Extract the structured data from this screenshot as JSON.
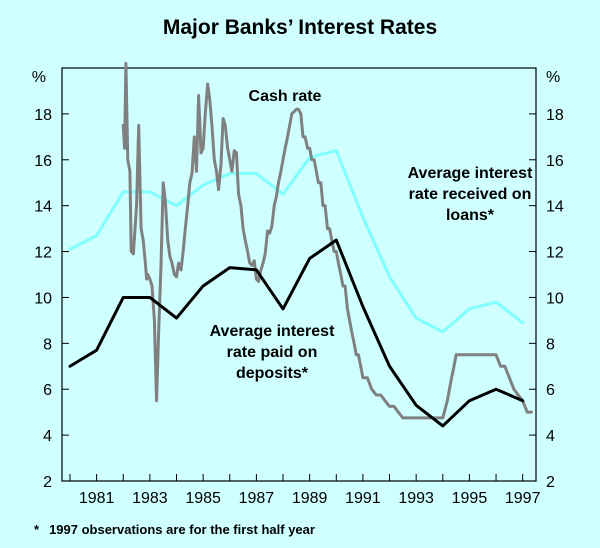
{
  "chart_data": {
    "type": "line",
    "title": "Major Banks’ Interest Rates",
    "ylabel_left": "%",
    "ylabel_right": "%",
    "ylim": [
      2,
      20
    ],
    "xlim": [
      1979.7,
      1997.5
    ],
    "y_ticks": [
      2,
      4,
      6,
      8,
      10,
      12,
      14,
      16,
      18
    ],
    "x_ticks": [
      1981,
      1983,
      1985,
      1987,
      1989,
      1991,
      1993,
      1995,
      1997
    ],
    "x_tick_labels": [
      "1981",
      "1983",
      "1985",
      "1987",
      "1989",
      "1991",
      "1993",
      "1995",
      "1997"
    ],
    "grid": false,
    "footnote": {
      "marker": "*",
      "text": "1997 observations are for the first half year"
    },
    "series": [
      {
        "name": "Average interest rate received on loans*",
        "label_lines": [
          "Average interest",
          "rate received on",
          "loans*"
        ],
        "color": "#80ffff",
        "stroke": 3,
        "x": [
          1980,
          1981,
          1982,
          1983,
          1984,
          1985,
          1986,
          1987,
          1988,
          1989,
          1990,
          1991,
          1992,
          1993,
          1994,
          1995,
          1996,
          1997
        ],
        "values": [
          12.1,
          12.7,
          14.6,
          14.6,
          14.0,
          14.9,
          15.4,
          15.4,
          14.5,
          16.1,
          16.4,
          13.5,
          10.9,
          9.1,
          8.5,
          9.5,
          9.8,
          8.9
        ]
      },
      {
        "name": "Cash rate",
        "label_lines": [
          "Cash rate"
        ],
        "color": "#808080",
        "stroke": 3,
        "x": [
          1982.0,
          1982.05,
          1982.1,
          1982.17,
          1982.25,
          1982.3,
          1982.38,
          1982.5,
          1982.58,
          1982.67,
          1982.75,
          1982.83,
          1982.88,
          1982.92,
          1983.0,
          1983.08,
          1983.17,
          1983.25,
          1983.33,
          1983.42,
          1983.5,
          1983.58,
          1983.67,
          1983.75,
          1983.83,
          1983.92,
          1984.0,
          1984.08,
          1984.17,
          1984.25,
          1984.33,
          1984.42,
          1984.5,
          1984.58,
          1984.67,
          1984.75,
          1984.83,
          1984.92,
          1985.0,
          1985.08,
          1985.17,
          1985.25,
          1985.33,
          1985.42,
          1985.5,
          1985.58,
          1985.67,
          1985.75,
          1985.83,
          1985.92,
          1986.0,
          1986.08,
          1986.17,
          1986.25,
          1986.33,
          1986.42,
          1986.5,
          1986.58,
          1986.67,
          1986.75,
          1986.83,
          1986.92,
          1987.0,
          1987.08,
          1987.17,
          1987.25,
          1987.33,
          1987.42,
          1987.5,
          1987.58,
          1987.67,
          1987.75,
          1987.83,
          1987.92,
          1988.0,
          1988.08,
          1988.17,
          1988.25,
          1988.33,
          1988.42,
          1988.5,
          1988.58,
          1988.67,
          1988.75,
          1988.83,
          1988.92,
          1989.0,
          1989.08,
          1989.17,
          1989.25,
          1989.33,
          1989.42,
          1989.5,
          1989.58,
          1989.67,
          1989.75,
          1989.83,
          1989.92,
          1990.0,
          1990.08,
          1990.17,
          1990.25,
          1990.33,
          1990.42,
          1990.5,
          1990.58,
          1990.67,
          1990.75,
          1990.83,
          1990.92,
          1991.0,
          1991.17,
          1991.33,
          1991.5,
          1991.67,
          1991.83,
          1992.0,
          1992.17,
          1992.33,
          1992.5,
          1992.67,
          1992.83,
          1993.0,
          1993.17,
          1993.33,
          1993.5,
          1993.67,
          1993.83,
          1994.0,
          1994.17,
          1994.33,
          1994.42,
          1994.5,
          1994.58,
          1994.67,
          1994.83,
          1995.0,
          1995.5,
          1996.0,
          1996.17,
          1996.33,
          1996.5,
          1996.67,
          1996.83,
          1997.0,
          1997.17,
          1997.33
        ],
        "values": [
          17.5,
          16.5,
          20.2,
          16.0,
          15.5,
          12.0,
          11.9,
          14.0,
          17.5,
          13.0,
          12.5,
          11.5,
          10.8,
          11.0,
          10.8,
          10.5,
          9.0,
          5.5,
          8.5,
          11.5,
          15.0,
          14.2,
          12.5,
          11.8,
          11.5,
          11.0,
          10.9,
          11.5,
          11.2,
          12.0,
          13.0,
          14.0,
          15.0,
          15.4,
          17.0,
          15.5,
          18.8,
          16.3,
          16.5,
          18.0,
          19.3,
          18.6,
          17.5,
          16.0,
          15.5,
          14.7,
          15.8,
          17.8,
          17.5,
          16.5,
          16.0,
          15.5,
          16.4,
          16.3,
          14.5,
          14.0,
          13.0,
          12.5,
          12.0,
          11.5,
          11.4,
          11.6,
          10.8,
          10.7,
          11.2,
          11.5,
          11.9,
          12.9,
          12.8,
          13.1,
          14.0,
          14.4,
          15.0,
          15.5,
          16.0,
          16.5,
          17.0,
          17.5,
          18.0,
          18.1,
          18.2,
          18.2,
          18.0,
          17.0,
          17.0,
          16.5,
          16.5,
          16.0,
          16.0,
          15.5,
          15.0,
          15.0,
          14.0,
          14.0,
          13.0,
          13.0,
          12.5,
          12.0,
          12.0,
          11.5,
          11.0,
          10.5,
          10.5,
          9.5,
          9.0,
          8.5,
          8.0,
          7.5,
          7.5,
          7.0,
          6.5,
          6.5,
          6.0,
          5.75,
          5.75,
          5.5,
          5.25,
          5.25,
          5.0,
          4.75,
          4.75,
          4.75,
          4.75,
          4.75,
          4.75,
          4.75,
          4.75,
          4.75,
          4.75,
          5.5,
          6.5,
          7.0,
          7.5,
          7.5,
          7.5,
          7.5,
          7.5,
          7.5,
          7.5,
          7.0,
          7.0,
          6.5,
          6.0,
          5.75,
          5.5,
          5.0,
          5.0
        ],
        "step": true
      },
      {
        "name": "Average interest rate paid on deposits*",
        "label_lines": [
          "Average interest",
          "rate paid on",
          "deposits*"
        ],
        "color": "#000000",
        "stroke": 3,
        "x": [
          1980,
          1981,
          1982,
          1983,
          1984,
          1985,
          1986,
          1987,
          1988,
          1989,
          1990,
          1991,
          1992,
          1993,
          1994,
          1995,
          1996,
          1997
        ],
        "values": [
          7.0,
          7.7,
          10.0,
          10.0,
          9.1,
          10.5,
          11.3,
          11.2,
          9.5,
          11.7,
          12.5,
          9.6,
          7.0,
          5.3,
          4.4,
          5.5,
          6.0,
          5.5
        ]
      }
    ]
  }
}
